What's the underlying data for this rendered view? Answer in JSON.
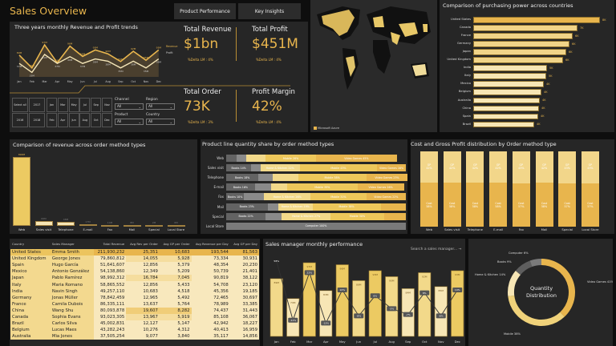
{
  "header": {
    "title": "Sales Overview",
    "buttons": [
      "Product Performance",
      "Key Insights"
    ]
  },
  "trend": {
    "title": "Three years monthly Revenue and Profit trends",
    "months": [
      "Jan",
      "Feb",
      "Mar",
      "Apr",
      "May",
      "Jun",
      "Jul",
      "Aug",
      "Sep",
      "Oct",
      "Nov",
      "Dec"
    ],
    "revenue": [
      89,
      79,
      97,
      83,
      96,
      88,
      93,
      90,
      84,
      92,
      85,
      93
    ],
    "profit": [
      37,
      33,
      41,
      37,
      40,
      37,
      39,
      38,
      35,
      38,
      35,
      39
    ],
    "revenue_labels": [
      "89M",
      "79M",
      "97M",
      "83M",
      "96M",
      "88M",
      "93M",
      "90M",
      "84M",
      "92M",
      "85M",
      "93M"
    ],
    "profit_labels": [
      "37M",
      "33M",
      "41M",
      "37M",
      "40M",
      "37M",
      "39M",
      "38M",
      "35M",
      "38M",
      "35M",
      "39M"
    ],
    "legend": [
      "Revenue",
      "Profit"
    ]
  },
  "kpis": [
    {
      "label": "Total Revenue",
      "value": "$1bn",
      "delta": "%Delta LM : 4%"
    },
    {
      "label": "Total Profit",
      "value": "$451M",
      "delta": "%Delta LM : 4%"
    },
    {
      "label": "Total Order",
      "value": "73K",
      "delta": "%Delta LM : 3%"
    },
    {
      "label": "Profit Margin",
      "value": "42%",
      "delta": "%Delta LM : 4%"
    }
  ],
  "slicers": {
    "years": [
      "Select all",
      "2017",
      "2016",
      "2018"
    ],
    "months": [
      "Jan",
      "Mar",
      "May",
      "Jul",
      "Sep",
      "Nov",
      "Feb",
      "Apr",
      "Jun",
      "Aug",
      "Oct",
      "Dec"
    ],
    "dropdowns": [
      {
        "label": "Channel",
        "value": "All"
      },
      {
        "label": "Region",
        "value": "All"
      },
      {
        "label": "Product",
        "value": "All"
      },
      {
        "label": "Country",
        "value": "All"
      }
    ]
  },
  "map": {
    "credit": "Microsoft Azure"
  },
  "countries": {
    "title": "Comparison of purchasing power across countries",
    "names": [
      "United States",
      "Canada",
      "France",
      "Germany",
      "Japan",
      "United Kingdom",
      "India",
      "Italy",
      "Mexico",
      "Belgium",
      "Australia",
      "China",
      "Spain",
      "Brazil"
    ],
    "values": [
      8,
      7,
      6,
      6,
      6,
      6,
      5,
      5,
      4,
      4,
      4,
      4,
      4,
      4
    ],
    "labels": [
      "8K",
      "7K",
      "6K",
      "6K",
      "6K",
      "6K",
      "5K",
      "5K",
      "4K",
      "4K",
      "4K",
      "4K",
      "4K",
      "4K"
    ],
    "bar_values": [
      7.9,
      6.5,
      6.2,
      6.0,
      5.8,
      5.6,
      4.6,
      4.55,
      4.4,
      4.25,
      4.15,
      4.1,
      4.05,
      3.8
    ]
  },
  "order_revenue": {
    "title": "Comparison of revenue across order method types",
    "categories": [
      "Web",
      "Sales visit",
      "Telephone",
      "E-mail",
      "Fax",
      "Mail",
      "Special",
      "Local Store"
    ],
    "values": [
      890,
      66,
      48,
      17,
      14,
      8,
      2,
      0
    ],
    "labels": [
      "890M",
      "66M",
      "48M",
      "17M",
      "14M",
      "8M",
      "2M",
      "0M"
    ]
  },
  "product_share": {
    "title": "Product line quantity share by order method types",
    "rows": [
      {
        "name": "Web",
        "segs": [
          [
            "",
            6
          ],
          [
            "",
            5
          ],
          [
            "",
            11
          ],
          [
            "Mobile 28%",
            28
          ],
          [
            "Video Games 45%",
            45
          ]
        ]
      },
      {
        "name": "Sales visit",
        "segs": [
          [
            "Books 14%",
            14
          ],
          [
            "",
            5
          ],
          [
            "Home & Kitchen 22%",
            22
          ],
          [
            "Mobile 43%",
            43
          ],
          [
            "Video Games 16%",
            16
          ]
        ]
      },
      {
        "name": "Telephone",
        "segs": [
          [
            "Books 18%",
            18
          ],
          [
            "",
            8
          ],
          [
            "",
            14
          ],
          [
            "Mobile 38%",
            38
          ],
          [
            "Video Games 23%",
            23
          ]
        ]
      },
      {
        "name": "E-mail",
        "segs": [
          [
            "Books 16%",
            16
          ],
          [
            "",
            9
          ],
          [
            "",
            9
          ],
          [
            "Mobile 39%",
            39
          ],
          [
            "Video Games 26%",
            26
          ]
        ]
      },
      {
        "name": "Fax",
        "segs": [
          [
            "Books 10%",
            10
          ],
          [
            "",
            11
          ],
          [
            "Home & Kitchen 26%",
            26
          ],
          [
            "Mobile 31%",
            31
          ],
          [
            "Video Games 22%",
            22
          ]
        ]
      },
      {
        "name": "Mail",
        "segs": [
          [
            "Books 23%",
            23
          ],
          [
            "",
            6
          ],
          [
            "Home & Kitchen 19%",
            19
          ],
          [
            "Mobile 38%",
            38
          ],
          [
            "",
            14
          ]
        ]
      },
      {
        "name": "Special",
        "segs": [
          [
            "Books 22%",
            22
          ],
          [
            "",
            9
          ],
          [
            "Home & Kitchen 27%",
            27
          ],
          [
            "Mobile 30%",
            30
          ],
          [
            "",
            12
          ]
        ]
      },
      {
        "name": "Local Store",
        "segs": [
          [
            "Computer 100%",
            100
          ]
        ]
      }
    ]
  },
  "cost_gp": {
    "title": "Cost and Gross Profit distribution by Order method type",
    "categories": [
      "Web",
      "Sales visit",
      "Telephone",
      "E-mail",
      "Fax",
      "Mail",
      "Special",
      "Local Store"
    ],
    "gp": [
      42,
      42,
      42,
      42,
      43,
      42,
      43,
      43
    ],
    "cost": [
      58,
      58,
      58,
      58,
      57,
      58,
      57,
      57
    ],
    "gp_label": "GP",
    "cost_label": "Cost"
  },
  "table": {
    "headers": [
      "Country",
      "Sales Manager",
      "Total Revenue",
      "Avg Rev per Order",
      "Avg GP per Order",
      "Avg Revenue per Day",
      "Avg GP per Day"
    ],
    "rows": [
      [
        "United States",
        "Emma Smith",
        "211,930,232",
        "25,351",
        "10,683",
        "193,544",
        "81,563"
      ],
      [
        "United Kingdom",
        "George Jones",
        "79,860,812",
        "14,055",
        "5,928",
        "73,334",
        "30,931"
      ],
      [
        "Spain",
        "Hugo García",
        "51,641,607",
        "12,856",
        "5,379",
        "48,354",
        "20,230"
      ],
      [
        "Mexico",
        "Antonio González",
        "54,138,860",
        "12,349",
        "5,209",
        "50,739",
        "21,401"
      ],
      [
        "Japan",
        "Pablo Ramírez",
        "98,992,312",
        "16,784",
        "7,045",
        "90,819",
        "38,122"
      ],
      [
        "Italy",
        "Maria Romano",
        "58,865,552",
        "12,856",
        "5,433",
        "54,708",
        "23,120"
      ],
      [
        "India",
        "Navin Singh",
        "49,257,110",
        "10,683",
        "4,518",
        "45,356",
        "19,185"
      ],
      [
        "Germany",
        "Jonas Müller",
        "78,842,459",
        "12,965",
        "5,492",
        "72,465",
        "30,697"
      ],
      [
        "France",
        "Camila Dubois",
        "86,335,111",
        "13,637",
        "5,764",
        "78,989",
        "33,385"
      ],
      [
        "China",
        "Wang Shu",
        "80,093,878",
        "19,607",
        "8,282",
        "74,437",
        "31,443"
      ],
      [
        "Canada",
        "Sophia Evans",
        "93,023,305",
        "13,967",
        "5,919",
        "85,108",
        "36,067"
      ],
      [
        "Brazil",
        "Carlos Silva",
        "45,002,831",
        "12,127",
        "5,147",
        "42,942",
        "18,227"
      ],
      [
        "Belgium",
        "Lucas Maes",
        "43,282,243",
        "10,276",
        "4,312",
        "40,413",
        "16,959"
      ],
      [
        "Australia",
        "Mia Jones",
        "37,505,254",
        "9,077",
        "3,840",
        "35,117",
        "14,856"
      ]
    ]
  },
  "monthly": {
    "title": "Sales manager monthly performance",
    "search_placeholder": "Search a sales manager...",
    "months": [
      "Jan",
      "Feb",
      "Mar",
      "Apr",
      "May",
      "Jun",
      "Jul",
      "Aug",
      "Sep",
      "Oct",
      "Nov",
      "Dec"
    ],
    "values": [
      89,
      79,
      97,
      83,
      96,
      88,
      93,
      90,
      84,
      92,
      85,
      93
    ],
    "labels": [
      "89M",
      "79M",
      "97M",
      "83M",
      "96M",
      "88M",
      "93M",
      "90M",
      "84M",
      "92M",
      "85M",
      "93M"
    ],
    "growth": [
      58,
      -11,
      22,
      -13,
      10,
      -8,
      6,
      -3,
      -7,
      8,
      -8,
      10
    ],
    "growth_labels": [
      "58%",
      "-11%",
      "22%",
      "-13%",
      "10%",
      "-8%",
      "6%",
      "-3%",
      "-7%",
      "8%",
      "-8%",
      "10%"
    ]
  },
  "donut": {
    "center": [
      "Quantity",
      "Distribution"
    ],
    "slices": [
      {
        "name": "Video Games",
        "value": 41,
        "color": "#e8b54d"
      },
      {
        "name": "Mobile",
        "value": 38,
        "color": "#f0d27a"
      },
      {
        "name": "Home & Kitchen",
        "value": 14,
        "color": "#f7e6b5"
      },
      {
        "name": "Books",
        "value": 9,
        "color": "#5e5e5e"
      },
      {
        "name": "Computer",
        "value": 6,
        "color": "#7a7a7a"
      }
    ],
    "labels": [
      "Video Games 41%",
      "Mobile 38%",
      "Home & Kitchen 14%",
      "Books 9%",
      "Computer 6%"
    ]
  },
  "colors": {
    "accent": "#e8b54d",
    "panel": "#262626",
    "bg": "#0e0e0e"
  }
}
